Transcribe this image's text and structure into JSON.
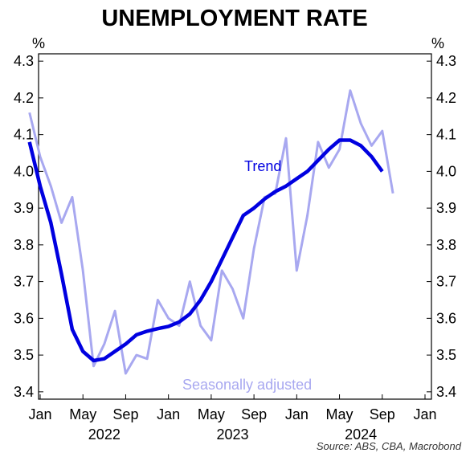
{
  "chart_data": {
    "type": "line",
    "title": "UNEMPLOYMENT RATE",
    "y_unit_left": "%",
    "y_unit_right": "%",
    "ylim": [
      3.38,
      4.32
    ],
    "yticks": [
      "3.4",
      "3.5",
      "3.6",
      "3.7",
      "3.8",
      "3.9",
      "4.0",
      "4.1",
      "4.2",
      "4.3"
    ],
    "x_tick_labels": [
      "Jan",
      "May",
      "Sep",
      "Jan",
      "May",
      "Sep",
      "Jan",
      "May",
      "Sep",
      "Jan"
    ],
    "x_tick_dates": [
      "2022-01",
      "2022-05",
      "2022-09",
      "2023-01",
      "2023-05",
      "2023-09",
      "2024-01",
      "2024-05",
      "2024-09",
      "2025-01"
    ],
    "year_labels": [
      {
        "label": "2022",
        "month": "2022-07"
      },
      {
        "label": "2023",
        "month": "2023-07"
      },
      {
        "label": "2024",
        "month": "2024-07"
      }
    ],
    "x": [
      "2021-12",
      "2022-01",
      "2022-02",
      "2022-03",
      "2022-04",
      "2022-05",
      "2022-06",
      "2022-07",
      "2022-08",
      "2022-09",
      "2022-10",
      "2022-11",
      "2022-12",
      "2023-01",
      "2023-02",
      "2023-03",
      "2023-04",
      "2023-05",
      "2023-06",
      "2023-07",
      "2023-08",
      "2023-09",
      "2023-10",
      "2023-11",
      "2023-12",
      "2024-01",
      "2024-02",
      "2024-03",
      "2024-04",
      "2024-05",
      "2024-06",
      "2024-07",
      "2024-08",
      "2024-09",
      "2024-10",
      "2024-11"
    ],
    "series": [
      {
        "name": "Seasonally adjusted",
        "color": "#a8a8f0",
        "values": [
          4.16,
          4.04,
          3.96,
          3.86,
          3.93,
          3.73,
          3.47,
          3.53,
          3.62,
          3.45,
          3.5,
          3.49,
          3.65,
          3.6,
          3.58,
          3.7,
          3.58,
          3.54,
          3.73,
          3.68,
          3.6,
          3.79,
          3.93,
          3.94,
          4.09,
          3.73,
          3.88,
          4.08,
          4.01,
          4.06,
          4.22,
          4.13,
          4.07,
          4.11,
          3.94,
          null
        ]
      },
      {
        "name": "Trend",
        "color": "#0000e0",
        "values": [
          4.08,
          3.96,
          3.86,
          3.72,
          3.57,
          3.51,
          3.485,
          3.49,
          3.51,
          3.53,
          3.555,
          3.565,
          3.572,
          3.578,
          3.59,
          3.612,
          3.65,
          3.7,
          3.76,
          3.82,
          3.88,
          3.9,
          3.925,
          3.945,
          3.96,
          3.98,
          4.0,
          4.03,
          4.06,
          4.085,
          4.085,
          4.07,
          4.04,
          4.0,
          null,
          null
        ]
      }
    ],
    "grid": false,
    "source": "Source: ABS, CBA, Macrobond"
  }
}
